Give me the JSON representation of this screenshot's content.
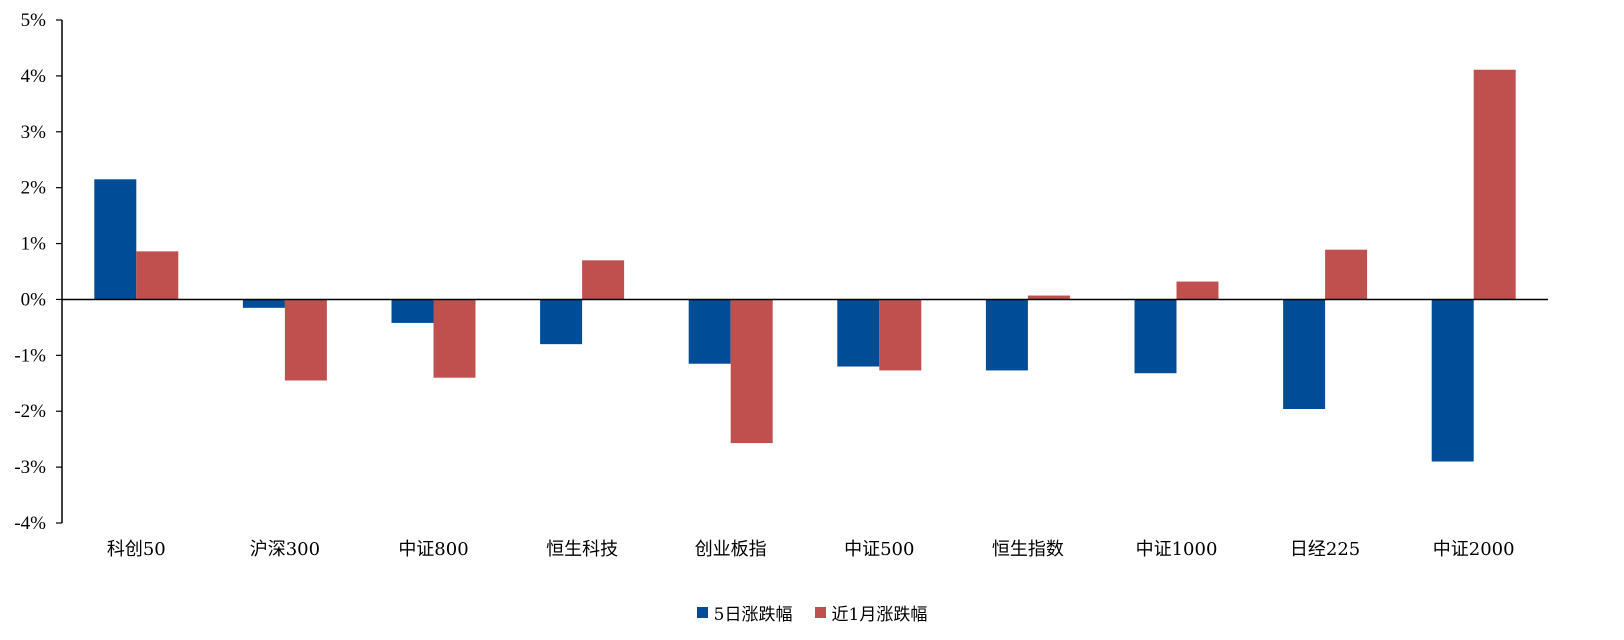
{
  "chart_data": {
    "type": "bar",
    "categories": [
      "科创50",
      "沪深300",
      "中证800",
      "恒生科技",
      "创业板指",
      "中证500",
      "恒生指数",
      "中证1000",
      "日经225",
      "中证2000"
    ],
    "series": [
      {
        "name": "5日涨跌幅",
        "color": "#004C97",
        "values": [
          2.15,
          -0.15,
          -0.42,
          -0.8,
          -1.15,
          -1.2,
          -1.27,
          -1.32,
          -1.96,
          -2.9
        ]
      },
      {
        "name": "近1月涨跌幅",
        "color": "#C0504D",
        "values": [
          0.86,
          -1.45,
          -1.4,
          0.7,
          -2.57,
          -1.27,
          0.07,
          0.32,
          0.89,
          4.11
        ]
      }
    ],
    "ylim": [
      -4,
      5
    ],
    "yticks": [
      "5%",
      "4%",
      "3%",
      "2%",
      "1%",
      "0%",
      "-1%",
      "-2%",
      "-3%",
      "-4%"
    ],
    "ytick_values": [
      5,
      4,
      3,
      2,
      1,
      0,
      -1,
      -2,
      -3,
      -4
    ],
    "legend_position": "bottom",
    "grid": false
  }
}
